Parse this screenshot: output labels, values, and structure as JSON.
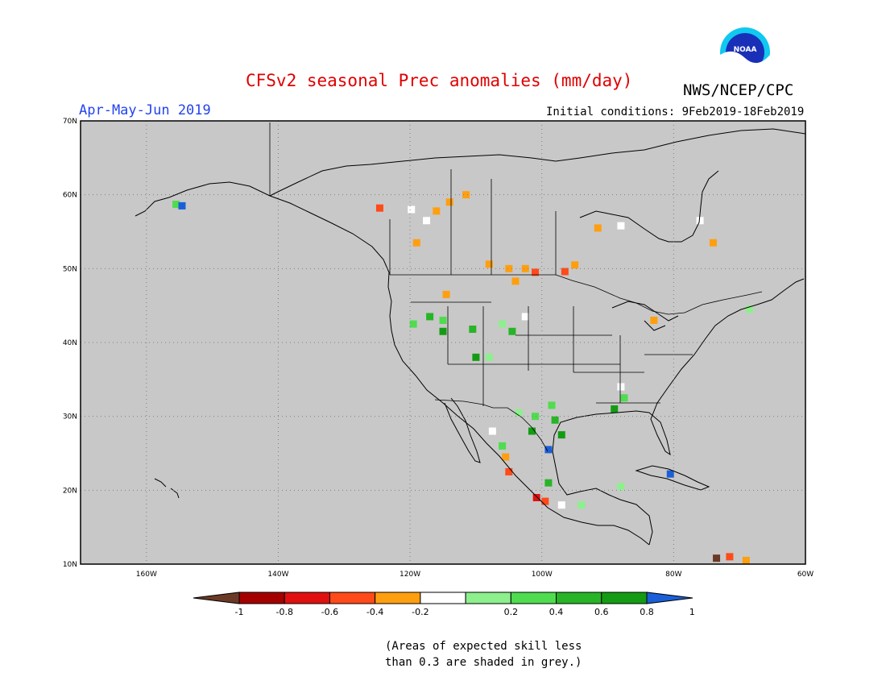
{
  "title": "CFSv2 seasonal Prec anomalies (mm/day)",
  "agency": "NWS/NCEP/CPC",
  "logo_text": "NOAA",
  "season": "Apr-May-Jun 2019",
  "initial_conditions": "Initial conditions: 9Feb2019-18Feb2019",
  "note_line1": "(Areas of expected skill less",
  "note_line2": "than 0.3 are shaded in grey.)",
  "map": {
    "projection": "equirectangular",
    "lon_range": [
      -170,
      -60
    ],
    "lat_range": [
      10,
      70
    ],
    "lat_labels": [
      {
        "lat": 70,
        "text": "70N"
      },
      {
        "lat": 60,
        "text": "60N"
      },
      {
        "lat": 50,
        "text": "50N"
      },
      {
        "lat": 40,
        "text": "40N"
      },
      {
        "lat": 30,
        "text": "30N"
      },
      {
        "lat": 20,
        "text": "20N"
      },
      {
        "lat": 10,
        "text": "10N"
      }
    ],
    "lon_labels": [
      {
        "lon": -160,
        "text": "160W"
      },
      {
        "lon": -140,
        "text": "140W"
      },
      {
        "lon": -120,
        "text": "120W"
      },
      {
        "lon": -100,
        "text": "100W"
      },
      {
        "lon": -80,
        "text": "80W"
      },
      {
        "lon": -60,
        "text": "60W"
      }
    ],
    "grid_lats": [
      20,
      30,
      40,
      50,
      60
    ],
    "grid_lons": [
      -160,
      -140,
      -120,
      -100,
      -80
    ],
    "background_color": "#c8c8c8"
  },
  "colorbar": {
    "labels": [
      "-1",
      "-0.8",
      "-0.6",
      "-0.4",
      "-0.2",
      "0.2",
      "0.4",
      "0.6",
      "0.8",
      "1"
    ],
    "colors": [
      "#6b3a26",
      "#a50000",
      "#e01010",
      "#ff4a1a",
      "#ff9f10",
      "#ffffff",
      "#8cf08c",
      "#4fdc4f",
      "#27b427",
      "#139c13",
      "#1b5fd8"
    ]
  },
  "anomalies": [
    {
      "lon": -155.5,
      "lat": 58.7,
      "value": 0.5
    },
    {
      "lon": -154.6,
      "lat": 58.5,
      "value": 1.1
    },
    {
      "lon": -124.6,
      "lat": 58.2,
      "value": -0.6
    },
    {
      "lon": -119.8,
      "lat": 58.0,
      "value": -0.2
    },
    {
      "lon": -116.0,
      "lat": 57.8,
      "value": -0.4
    },
    {
      "lon": -114.0,
      "lat": 59.0,
      "value": -0.4
    },
    {
      "lon": -111.5,
      "lat": 60.0,
      "value": -0.4
    },
    {
      "lon": -117.5,
      "lat": 56.5,
      "value": -0.2
    },
    {
      "lon": -119.0,
      "lat": 53.5,
      "value": -0.4
    },
    {
      "lon": -105.0,
      "lat": 50.0,
      "value": -0.4
    },
    {
      "lon": -102.5,
      "lat": 50.0,
      "value": -0.4
    },
    {
      "lon": -104.0,
      "lat": 48.3,
      "value": -0.4
    },
    {
      "lon": -101.0,
      "lat": 49.5,
      "value": -0.6
    },
    {
      "lon": -96.5,
      "lat": 49.6,
      "value": -0.6
    },
    {
      "lon": -95.0,
      "lat": 50.5,
      "value": -0.4
    },
    {
      "lon": -108.0,
      "lat": 50.6,
      "value": -0.4
    },
    {
      "lon": -114.5,
      "lat": 46.5,
      "value": -0.4
    },
    {
      "lon": -119.5,
      "lat": 42.5,
      "value": 0.4
    },
    {
      "lon": -117.0,
      "lat": 43.5,
      "value": 0.6
    },
    {
      "lon": -115.0,
      "lat": 43.0,
      "value": 0.5
    },
    {
      "lon": -115.0,
      "lat": 41.5,
      "value": 0.8
    },
    {
      "lon": -110.5,
      "lat": 41.8,
      "value": 0.7
    },
    {
      "lon": -106.0,
      "lat": 42.5,
      "value": 0.3
    },
    {
      "lon": -104.5,
      "lat": 41.5,
      "value": 0.7
    },
    {
      "lon": -102.5,
      "lat": 43.5,
      "value": -0.2
    },
    {
      "lon": -110.0,
      "lat": 38.0,
      "value": 0.8
    },
    {
      "lon": -108.0,
      "lat": 38.0,
      "value": 0.3
    },
    {
      "lon": -103.5,
      "lat": 30.5,
      "value": 0.3
    },
    {
      "lon": -101.0,
      "lat": 30.0,
      "value": 0.5
    },
    {
      "lon": -98.5,
      "lat": 31.5,
      "value": 0.4
    },
    {
      "lon": -98.0,
      "lat": 29.5,
      "value": 0.7
    },
    {
      "lon": -97.0,
      "lat": 27.5,
      "value": 0.8
    },
    {
      "lon": -101.5,
      "lat": 28.0,
      "value": 0.8
    },
    {
      "lon": -99.0,
      "lat": 25.5,
      "value": 1.1
    },
    {
      "lon": -107.5,
      "lat": 28.0,
      "value": -0.2
    },
    {
      "lon": -106.0,
      "lat": 26.0,
      "value": 0.4
    },
    {
      "lon": -105.5,
      "lat": 24.5,
      "value": -0.4
    },
    {
      "lon": -105.0,
      "lat": 22.5,
      "value": -0.6
    },
    {
      "lon": -99.0,
      "lat": 21.0,
      "value": 0.6
    },
    {
      "lon": -100.8,
      "lat": 19.0,
      "value": -0.8
    },
    {
      "lon": -99.5,
      "lat": 18.5,
      "value": -0.6
    },
    {
      "lon": -97.0,
      "lat": 18.0,
      "value": -0.2
    },
    {
      "lon": -94.0,
      "lat": 18.0,
      "value": 0.3
    },
    {
      "lon": -88.0,
      "lat": 20.5,
      "value": 0.3
    },
    {
      "lon": -87.5,
      "lat": 32.5,
      "value": 0.5
    },
    {
      "lon": -89.0,
      "lat": 31.0,
      "value": 0.8
    },
    {
      "lon": -88.0,
      "lat": 34.0,
      "value": -0.2
    },
    {
      "lon": -80.5,
      "lat": 22.2,
      "value": 1.1
    },
    {
      "lon": -83.0,
      "lat": 43.0,
      "value": -0.4
    },
    {
      "lon": -76.0,
      "lat": 56.5,
      "value": -0.2
    },
    {
      "lon": -74.0,
      "lat": 53.5,
      "value": -0.4
    },
    {
      "lon": -68.5,
      "lat": 44.5,
      "value": 0.3
    },
    {
      "lon": -71.5,
      "lat": 11.0,
      "value": -0.6
    },
    {
      "lon": -73.5,
      "lat": 10.8,
      "value": -1.1
    },
    {
      "lon": -69.0,
      "lat": 10.5,
      "value": -0.4
    },
    {
      "lon": -88.0,
      "lat": 55.8,
      "value": -0.2
    },
    {
      "lon": -91.5,
      "lat": 55.5,
      "value": -0.4
    }
  ]
}
